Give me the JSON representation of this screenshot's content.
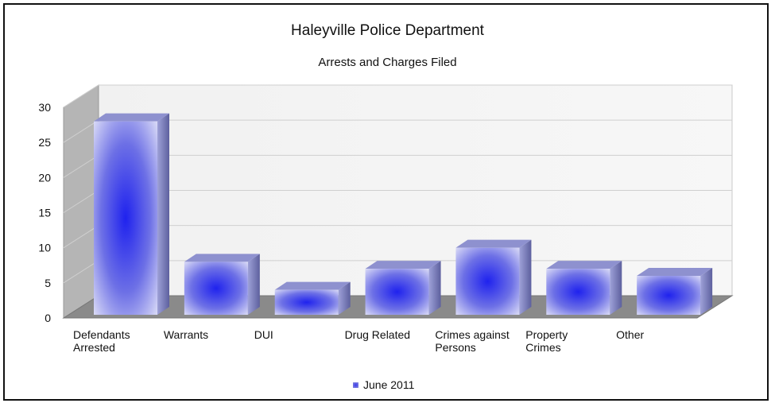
{
  "chart_data": {
    "type": "bar",
    "title": "Haleyville Police Department",
    "subtitle": "Arrests and Charges Filed",
    "categories": [
      [
        "Defendants",
        "Arrested"
      ],
      [
        "Warrants"
      ],
      [
        "DUI"
      ],
      [
        "Drug Related"
      ],
      [
        "Crimes against",
        "Persons"
      ],
      [
        "Property",
        "Crimes"
      ],
      [
        "Other"
      ]
    ],
    "series": [
      {
        "name": "June 2011",
        "values": [
          28,
          8,
          4,
          7,
          10,
          7,
          6
        ]
      }
    ],
    "ylim": [
      0,
      30
    ],
    "yticks": [
      0,
      5,
      10,
      15,
      20,
      25,
      30
    ],
    "grid": true,
    "legend_position": "bottom",
    "colors": {
      "bar_center": "#1f22ee",
      "bar_edge": "#b8baf2",
      "side": "#7a7db8",
      "top": "#8f92cf",
      "floor": "#8c8c8c",
      "wall": "#bdbdbd"
    }
  }
}
